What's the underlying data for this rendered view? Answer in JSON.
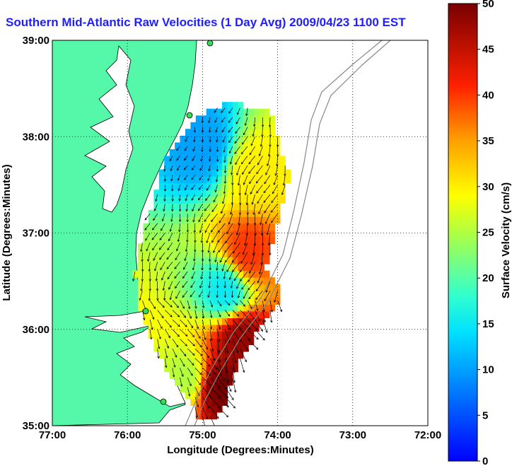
{
  "chart_data": {
    "type": "heatmap",
    "title": "Southern Mid-Atlantic Raw Velocities (1 Day Avg) 2009/04/23 1100 EST",
    "xlabel": "Longitude (Degrees:Minutes)",
    "ylabel": "Latitude (Degrees:Minutes)",
    "x_ticks": [
      "77:00",
      "76:00",
      "75:00",
      "74:00",
      "73:00",
      "72:00"
    ],
    "y_ticks": [
      "39:00",
      "38:00",
      "37:00",
      "36:00",
      "35:00"
    ],
    "xlim": [
      -77,
      -72
    ],
    "ylim": [
      35,
      39
    ],
    "grid": true,
    "colorbar": {
      "label": "Surface Velocity (cm/s)",
      "min": 0,
      "max": 50,
      "ticks": [
        "0",
        "5",
        "10",
        "15",
        "20",
        "25",
        "30",
        "35",
        "40",
        "45",
        "50"
      ]
    },
    "velocity_regions": [
      {
        "lon": -74.3,
        "lat": 37.6,
        "speed": 30
      },
      {
        "lon": -74.4,
        "lat": 36.8,
        "speed": 40
      },
      {
        "lon": -74.5,
        "lat": 35.9,
        "speed": 48
      },
      {
        "lon": -74.8,
        "lat": 35.4,
        "speed": 50
      },
      {
        "lon": -75.0,
        "lat": 37.9,
        "speed": 10
      },
      {
        "lon": -74.7,
        "lat": 36.4,
        "speed": 15
      },
      {
        "lon": -75.2,
        "lat": 35.5,
        "speed": 25
      }
    ]
  }
}
